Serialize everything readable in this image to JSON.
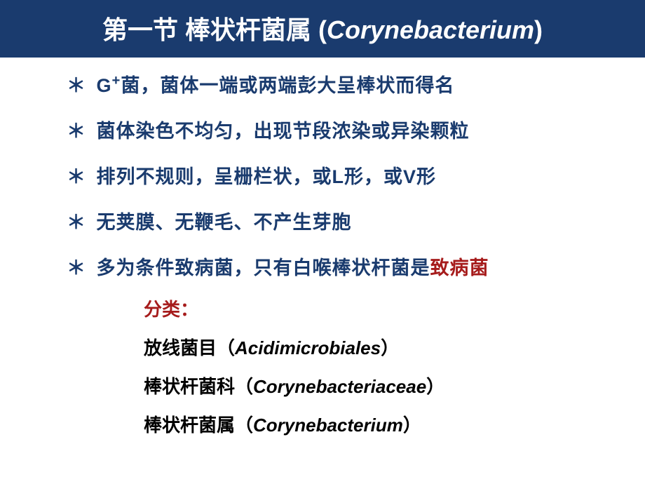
{
  "colors": {
    "title_bg": "#1a3b6e",
    "title_text": "#ffffff",
    "body_text": "#1a3b6e",
    "highlight": "#a61c1c",
    "sub_text": "#000000",
    "classify_text": "#a61c1c"
  },
  "typography": {
    "title_fontsize": 36,
    "body_fontsize": 27,
    "sub_fontsize": 26
  },
  "title": {
    "cn": "第一节 棒状杆菌属 (",
    "latin": "Corynebacterium",
    "close": ")"
  },
  "bullets": [
    {
      "pre": "G",
      "sup": "+",
      "post": "菌，菌体一端或两端彭大呈棒状而得名",
      "highlight": ""
    },
    {
      "pre": "菌体染色不均匀，出现节段浓染或异染颗粒",
      "sup": "",
      "post": "",
      "highlight": ""
    },
    {
      "pre": "排列不规则，呈栅栏状，或L形，或V形",
      "sup": "",
      "post": "",
      "highlight": ""
    },
    {
      "pre": "无荚膜、无鞭毛、不产生芽胞",
      "sup": "",
      "post": "",
      "highlight": ""
    },
    {
      "pre": "多为条件致病菌，只有白喉棒状杆菌是",
      "sup": "",
      "post": "",
      "highlight": "致病菌"
    }
  ],
  "classification": {
    "heading": "分类：",
    "lines": [
      {
        "cn_pre": "放线菌目（",
        "latin": "Acidimicrobiales",
        "cn_post": "）"
      },
      {
        "cn_pre": "棒状杆菌科（",
        "latin": "Corynebacteriaceae",
        "cn_post": "）"
      },
      {
        "cn_pre": "棒状杆菌属（",
        "latin": "Corynebacterium",
        "cn_post": "）"
      }
    ]
  }
}
